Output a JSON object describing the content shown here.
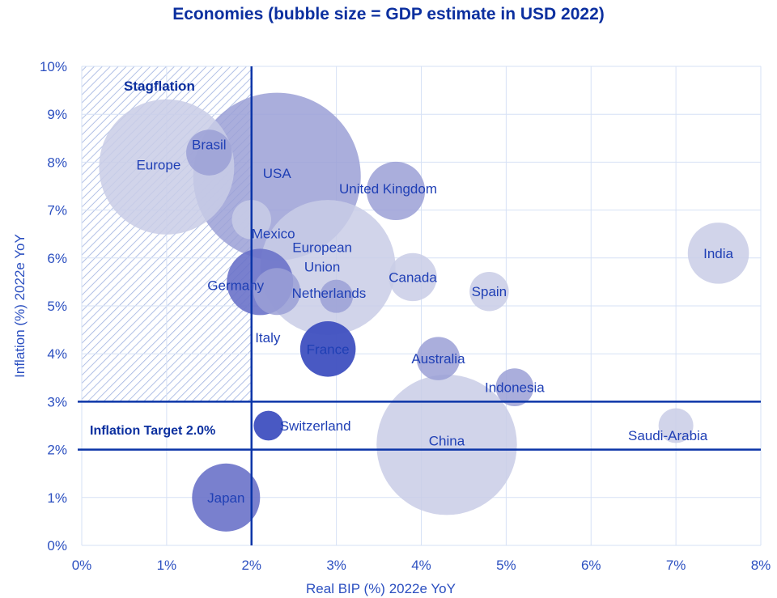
{
  "chart_data": {
    "type": "scatter",
    "title": "Economies (bubble size = GDP estimate in USD 2022)",
    "xlabel": "Real BIP (%) 2022e YoY",
    "ylabel": "Inflation (%) 2022e YoY",
    "xlim": [
      0,
      8
    ],
    "ylim": [
      0,
      10
    ],
    "x_ticks": [
      "0%",
      "1%",
      "2%",
      "3%",
      "4%",
      "5%",
      "6%",
      "7%",
      "8%"
    ],
    "y_ticks": [
      "0%",
      "1%",
      "2%",
      "3%",
      "4%",
      "5%",
      "6%",
      "7%",
      "8%",
      "9%",
      "10%"
    ],
    "grid": true,
    "reference_lines": {
      "vertical_x": 2,
      "horizontal_y": [
        2,
        3
      ]
    },
    "annotations": {
      "stagflation": "Stagflation",
      "inflation_target": "Inflation Target 2.0%"
    },
    "colors": {
      "light": "#c9cce6",
      "medium": "#9ba0d6",
      "dark": "#6a72c9",
      "darkest": "#3f50c0",
      "line": "#0b35a8",
      "grid": "#d6e1f5",
      "text": "#2b4fc0"
    },
    "points": [
      {
        "label": "Europe",
        "x": 1.0,
        "y": 7.9,
        "gdp_usd_trillion": 16.6,
        "shade": "light"
      },
      {
        "label": "USA",
        "x": 2.3,
        "y": 7.7,
        "gdp_usd_trillion": 25.5,
        "shade": "medium"
      },
      {
        "label": "China",
        "x": 4.3,
        "y": 2.1,
        "gdp_usd_trillion": 17.9,
        "shade": "light"
      },
      {
        "label": "European Union",
        "x": 2.9,
        "y": 5.8,
        "gdp_usd_trillion": 16.6,
        "shade": "light"
      },
      {
        "label": "Japan",
        "x": 1.7,
        "y": 1.0,
        "gdp_usd_trillion": 4.2,
        "shade": "dark"
      },
      {
        "label": "Germany",
        "x": 2.1,
        "y": 5.5,
        "gdp_usd_trillion": 4.0,
        "shade": "dark"
      },
      {
        "label": "India",
        "x": 7.5,
        "y": 6.1,
        "gdp_usd_trillion": 3.4,
        "shade": "light"
      },
      {
        "label": "United Kingdom",
        "x": 3.7,
        "y": 7.4,
        "gdp_usd_trillion": 3.1,
        "shade": "medium"
      },
      {
        "label": "France",
        "x": 2.9,
        "y": 4.1,
        "gdp_usd_trillion": 2.8,
        "shade": "darkest"
      },
      {
        "label": "Canada",
        "x": 3.9,
        "y": 5.6,
        "gdp_usd_trillion": 2.1,
        "shade": "light"
      },
      {
        "label": "Italy",
        "x": 2.3,
        "y": 5.3,
        "gdp_usd_trillion": 2.0,
        "shade": "medium"
      },
      {
        "label": "Brasil",
        "x": 1.5,
        "y": 8.2,
        "gdp_usd_trillion": 1.9,
        "shade": "medium"
      },
      {
        "label": "Australia",
        "x": 4.2,
        "y": 3.9,
        "gdp_usd_trillion": 1.7,
        "shade": "medium"
      },
      {
        "label": "Spain",
        "x": 4.8,
        "y": 5.3,
        "gdp_usd_trillion": 1.4,
        "shade": "light"
      },
      {
        "label": "Mexico",
        "x": 2.0,
        "y": 6.8,
        "gdp_usd_trillion": 1.4,
        "shade": "light"
      },
      {
        "label": "Indonesia",
        "x": 5.1,
        "y": 3.3,
        "gdp_usd_trillion": 1.3,
        "shade": "medium"
      },
      {
        "label": "Saudi-Arabia",
        "x": 7.0,
        "y": 2.5,
        "gdp_usd_trillion": 1.1,
        "shade": "light"
      },
      {
        "label": "Netherlands",
        "x": 3.0,
        "y": 5.2,
        "gdp_usd_trillion": 1.0,
        "shade": "medium"
      },
      {
        "label": "Switzerland",
        "x": 2.2,
        "y": 2.5,
        "gdp_usd_trillion": 0.8,
        "shade": "darkest"
      }
    ]
  }
}
